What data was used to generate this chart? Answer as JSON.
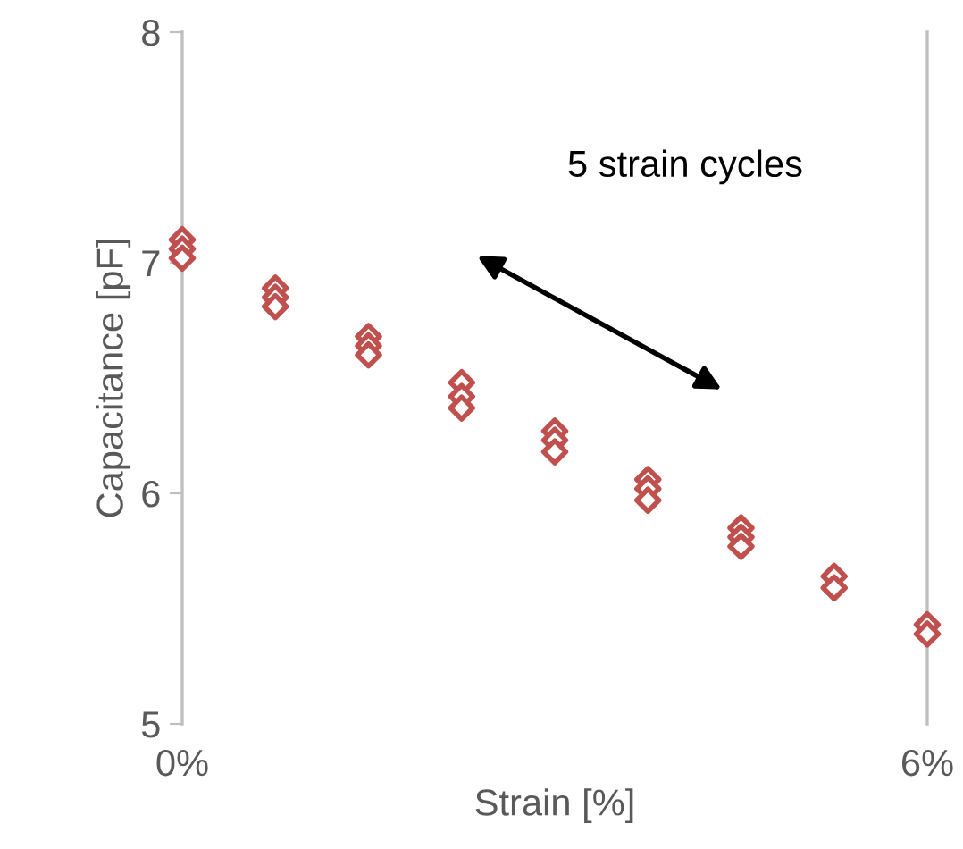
{
  "chart_data": {
    "type": "scatter",
    "xlabel": "Strain [%]",
    "ylabel": "Capacitance [pF]",
    "x": [
      0,
      0,
      0,
      0.75,
      0.75,
      0.75,
      1.5,
      1.5,
      1.5,
      2.25,
      2.25,
      2.25,
      3,
      3,
      3,
      3.75,
      3.75,
      3.75,
      4.5,
      4.5,
      4.5,
      5.25,
      5.25,
      6,
      6
    ],
    "series": [
      {
        "color": "#c0504d",
        "values": [
          7.1,
          7.06,
          7.02,
          6.89,
          6.85,
          6.81,
          6.68,
          6.64,
          6.6,
          6.48,
          6.42,
          6.37,
          6.27,
          6.23,
          6.18,
          6.06,
          6.02,
          5.97,
          5.85,
          5.81,
          5.77,
          5.64,
          5.59,
          5.43,
          5.39
        ]
      }
    ],
    "xlim": [
      0,
      6
    ],
    "xticks": [
      {
        "value": 0,
        "label": "0%"
      },
      {
        "value": 6,
        "label": "6%"
      }
    ],
    "ylim": [
      5,
      8
    ],
    "yticks": [
      5,
      6,
      7,
      8
    ],
    "marker": "diamond",
    "annotations": [
      "5 strain cycles"
    ]
  }
}
